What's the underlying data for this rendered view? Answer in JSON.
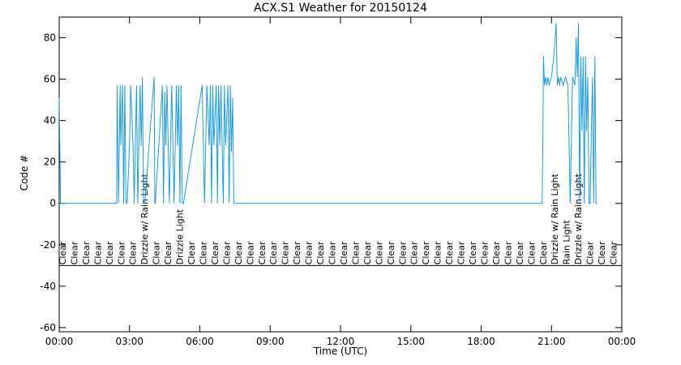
{
  "chart_data": {
    "type": "line",
    "title": "ACX.S1 Weather for 20150124",
    "xlabel": "Time (UTC)",
    "ylabel": "Code #",
    "xlim": [
      0,
      24
    ],
    "xticks": [
      {
        "value": 0,
        "label": "00:00"
      },
      {
        "value": 3,
        "label": "03:00"
      },
      {
        "value": 6,
        "label": "06:00"
      },
      {
        "value": 9,
        "label": "09:00"
      },
      {
        "value": 12,
        "label": "12:00"
      },
      {
        "value": 15,
        "label": "15:00"
      },
      {
        "value": 18,
        "label": "18:00"
      },
      {
        "value": 21,
        "label": "21:00"
      },
      {
        "value": 24,
        "label": "00:00"
      }
    ],
    "ylim": [
      -62,
      90
    ],
    "yticks": [
      -60,
      -40,
      -20,
      0,
      20,
      40,
      60,
      80
    ],
    "annotation_line": -30,
    "annotations": [
      {
        "x": 0,
        "text": "Clear"
      },
      {
        "x": 0.5,
        "text": "Clear"
      },
      {
        "x": 1,
        "text": "Clear"
      },
      {
        "x": 1.5,
        "text": "Clear"
      },
      {
        "x": 2,
        "text": "Clear"
      },
      {
        "x": 2.5,
        "text": "Clear"
      },
      {
        "x": 3,
        "text": "Clear"
      },
      {
        "x": 3.5,
        "text": "Drizzle w/ Rain Light"
      },
      {
        "x": 4,
        "text": "Clear"
      },
      {
        "x": 4.5,
        "text": "Clear"
      },
      {
        "x": 5,
        "text": "Drizzle Light"
      },
      {
        "x": 5.5,
        "text": "Clear"
      },
      {
        "x": 6,
        "text": "Clear"
      },
      {
        "x": 6.5,
        "text": "Clear"
      },
      {
        "x": 7,
        "text": "Clear"
      },
      {
        "x": 7.5,
        "text": "Clear"
      },
      {
        "x": 8,
        "text": "Clear"
      },
      {
        "x": 8.5,
        "text": "Clear"
      },
      {
        "x": 9,
        "text": "Clear"
      },
      {
        "x": 9.5,
        "text": "Clear"
      },
      {
        "x": 10,
        "text": "Clear"
      },
      {
        "x": 10.5,
        "text": "Clear"
      },
      {
        "x": 11,
        "text": "Clear"
      },
      {
        "x": 11.5,
        "text": "Clear"
      },
      {
        "x": 12,
        "text": "Clear"
      },
      {
        "x": 12.5,
        "text": "Clear"
      },
      {
        "x": 13,
        "text": "Clear"
      },
      {
        "x": 13.5,
        "text": "Clear"
      },
      {
        "x": 14,
        "text": "Clear"
      },
      {
        "x": 14.5,
        "text": "Clear"
      },
      {
        "x": 15,
        "text": "Clear"
      },
      {
        "x": 15.5,
        "text": "Clear"
      },
      {
        "x": 16,
        "text": "Clear"
      },
      {
        "x": 16.5,
        "text": "Clear"
      },
      {
        "x": 17,
        "text": "Clear"
      },
      {
        "x": 17.5,
        "text": "Clear"
      },
      {
        "x": 18,
        "text": "Clear"
      },
      {
        "x": 18.5,
        "text": "Clear"
      },
      {
        "x": 19,
        "text": "Clear"
      },
      {
        "x": 19.5,
        "text": "Clear"
      },
      {
        "x": 20,
        "text": "Clear"
      },
      {
        "x": 20.5,
        "text": "Clear"
      },
      {
        "x": 21,
        "text": "Drizzle w/ Rain Light"
      },
      {
        "x": 21.5,
        "text": "Rain Light"
      },
      {
        "x": 22,
        "text": "Drizzle w/ Rain Light"
      },
      {
        "x": 22.5,
        "text": "Clear"
      },
      {
        "x": 23,
        "text": "Clear"
      },
      {
        "x": 23.5,
        "text": "Clear"
      }
    ],
    "series": [
      {
        "color": "#1a9be0",
        "x": [
          0,
          0.03,
          0.06,
          2.45,
          2.47,
          2.5,
          2.53,
          2.6,
          2.63,
          2.7,
          2.75,
          2.8,
          2.85,
          2.9,
          3.0,
          3.05,
          3.15,
          3.2,
          3.3,
          3.35,
          3.45,
          3.5,
          3.55,
          3.6,
          3.65,
          4.05,
          4.08,
          4.1,
          4.4,
          4.45,
          4.5,
          4.55,
          4.6,
          4.7,
          4.75,
          4.8,
          4.9,
          5.0,
          5.05,
          5.1,
          5.15,
          5.2,
          5.25,
          5.3,
          6.1,
          6.15,
          6.2,
          6.3,
          6.4,
          6.45,
          6.5,
          6.55,
          6.6,
          6.7,
          6.75,
          6.8,
          6.85,
          6.9,
          7.0,
          7.05,
          7.1,
          7.2,
          7.25,
          7.3,
          7.35,
          7.4,
          7.45,
          7.5,
          20.6,
          20.63,
          20.66,
          20.7,
          20.75,
          20.8,
          20.85,
          20.9,
          21.0,
          21.1,
          21.2,
          21.25,
          21.3,
          21.35,
          21.4,
          21.5,
          21.6,
          21.7,
          21.8,
          21.9,
          22.0,
          22.05,
          22.1,
          22.15,
          22.2,
          22.25,
          22.3,
          22.35,
          22.4,
          22.45,
          22.5,
          22.55,
          22.6,
          22.65,
          22.7,
          22.75,
          22.8,
          22.85,
          22.9,
          22.95
        ],
        "values": [
          51,
          25,
          0,
          0,
          57,
          28,
          0,
          57,
          28,
          57,
          0,
          57,
          0,
          0,
          28,
          57,
          28,
          0,
          57,
          0,
          57,
          28,
          61,
          0,
          0,
          61,
          0,
          0,
          57,
          0,
          54,
          28,
          57,
          0,
          28,
          57,
          0,
          57,
          28,
          57,
          0,
          57,
          0,
          0,
          57,
          28,
          0,
          57,
          28,
          57,
          0,
          57,
          28,
          57,
          0,
          57,
          28,
          57,
          0,
          57,
          28,
          57,
          0,
          57,
          25,
          51,
          0,
          0,
          0,
          29,
          71,
          57,
          61,
          57,
          61,
          57,
          61,
          71,
          87,
          57,
          61,
          57,
          61,
          57,
          61,
          57,
          0,
          61,
          57,
          80,
          61,
          87,
          0,
          71,
          35,
          71,
          0,
          71,
          35,
          61,
          0,
          0,
          35,
          61,
          0,
          71,
          0,
          0
        ]
      }
    ]
  }
}
